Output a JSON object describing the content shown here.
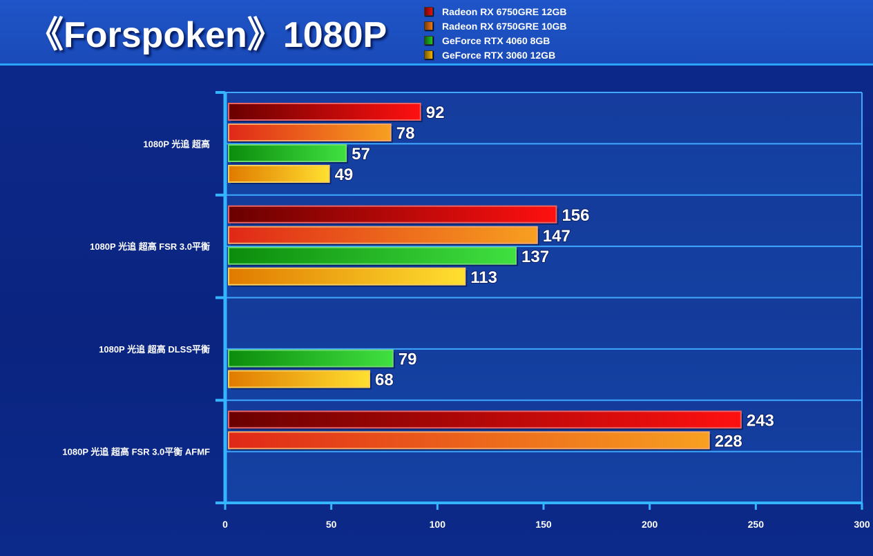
{
  "chart_data": {
    "type": "bar",
    "orientation": "horizontal",
    "title": "《Forspoken》1080P",
    "categories": [
      "1080P 光追 超高",
      "1080P 光追 超高 FSR 3.0平衡",
      "1080P 光追 超高 DLSS平衡",
      "1080P 光追 超高 FSR 3.0平衡 AFMF"
    ],
    "series": [
      {
        "name": "Radeon RX 6750GRE 12GB",
        "color": "#e01010",
        "values": [
          92,
          156,
          null,
          243
        ]
      },
      {
        "name": "Radeon RX 6750GRE 10GB",
        "color": "#f07818",
        "values": [
          78,
          147,
          null,
          228
        ]
      },
      {
        "name": "GeForce RTX 4060 8GB",
        "color": "#22c422",
        "values": [
          57,
          137,
          79,
          null
        ]
      },
      {
        "name": "GeForce RTX 3060 12GB",
        "color": "#f2b400",
        "values": [
          49,
          113,
          68,
          null
        ]
      }
    ],
    "xlim": [
      0,
      300
    ],
    "xticks": [
      0,
      50,
      100,
      150,
      200,
      250,
      300
    ],
    "legend_position": "top",
    "grid": true
  }
}
